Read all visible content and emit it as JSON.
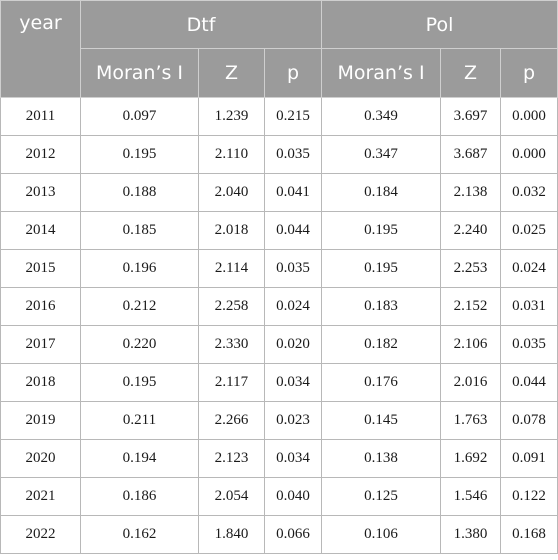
{
  "header": {
    "year": "year",
    "group_dtf": "Dtf",
    "group_pol": "Pol",
    "sub": [
      "Moran’s I",
      "Z",
      "p",
      "Moran’s I",
      "Z",
      "p"
    ]
  },
  "rows": [
    {
      "year": "2011",
      "dtf_i": "0.097",
      "dtf_z": "1.239",
      "dtf_p": "0.215",
      "pol_i": "0.349",
      "pol_z": "3.697",
      "pol_p": "0.000"
    },
    {
      "year": "2012",
      "dtf_i": "0.195",
      "dtf_z": "2.110",
      "dtf_p": "0.035",
      "pol_i": "0.347",
      "pol_z": "3.687",
      "pol_p": "0.000"
    },
    {
      "year": "2013",
      "dtf_i": "0.188",
      "dtf_z": "2.040",
      "dtf_p": "0.041",
      "pol_i": "0.184",
      "pol_z": "2.138",
      "pol_p": "0.032"
    },
    {
      "year": "2014",
      "dtf_i": "0.185",
      "dtf_z": "2.018",
      "dtf_p": "0.044",
      "pol_i": "0.195",
      "pol_z": "2.240",
      "pol_p": "0.025"
    },
    {
      "year": "2015",
      "dtf_i": "0.196",
      "dtf_z": "2.114",
      "dtf_p": "0.035",
      "pol_i": "0.195",
      "pol_z": "2.253",
      "pol_p": "0.024"
    },
    {
      "year": "2016",
      "dtf_i": "0.212",
      "dtf_z": "2.258",
      "dtf_p": "0.024",
      "pol_i": "0.183",
      "pol_z": "2.152",
      "pol_p": "0.031"
    },
    {
      "year": "2017",
      "dtf_i": "0.220",
      "dtf_z": "2.330",
      "dtf_p": "0.020",
      "pol_i": "0.182",
      "pol_z": "2.106",
      "pol_p": "0.035"
    },
    {
      "year": "2018",
      "dtf_i": "0.195",
      "dtf_z": "2.117",
      "dtf_p": "0.034",
      "pol_i": "0.176",
      "pol_z": "2.016",
      "pol_p": "0.044"
    },
    {
      "year": "2019",
      "dtf_i": "0.211",
      "dtf_z": "2.266",
      "dtf_p": "0.023",
      "pol_i": "0.145",
      "pol_z": "1.763",
      "pol_p": "0.078"
    },
    {
      "year": "2020",
      "dtf_i": "0.194",
      "dtf_z": "2.123",
      "dtf_p": "0.034",
      "pol_i": "0.138",
      "pol_z": "1.692",
      "pol_p": "0.091"
    },
    {
      "year": "2021",
      "dtf_i": "0.186",
      "dtf_z": "2.054",
      "dtf_p": "0.040",
      "pol_i": "0.125",
      "pol_z": "1.546",
      "pol_p": "0.122"
    },
    {
      "year": "2022",
      "dtf_i": "0.162",
      "dtf_z": "1.840",
      "dtf_p": "0.066",
      "pol_i": "0.106",
      "pol_z": "1.380",
      "pol_p": "0.168"
    }
  ],
  "colors": {
    "header_bg": "#9b9b9b",
    "header_text": "#ffffff",
    "grid": "#b8b8b8"
  }
}
